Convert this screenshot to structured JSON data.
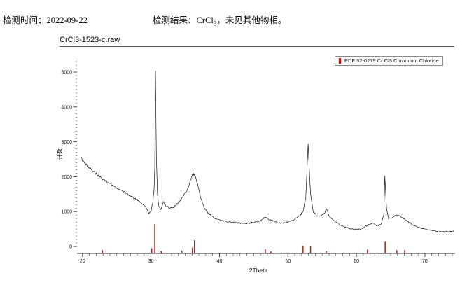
{
  "header": {
    "time_label": "检测时间：",
    "time_value": "2022-09-22",
    "result_label": "检测结果：",
    "result_formula_base": "CrCl",
    "result_formula_sub": "3",
    "result_suffix": "，未见其他物相。"
  },
  "chart": {
    "title": "CrCl3-1523-c.raw"
  },
  "chart_data": {
    "type": "line",
    "title": "CrCl3-1523-c.raw",
    "xlabel": "2Theta",
    "ylabel": "计数",
    "xlim": [
      19.2,
      74.2
    ],
    "ylim": [
      0,
      5300
    ],
    "x_ticks": [
      20,
      30,
      40,
      50,
      60,
      70
    ],
    "x_minor_step": 1,
    "y_ticks": [
      0,
      1000,
      2000,
      3000,
      4000,
      5000
    ],
    "y_minor_step": 100,
    "grid": false,
    "legend": {
      "label": "PDF 32-0279 Cr Cl3 Chromium Chloride",
      "marker_color": "#cc1111",
      "position": "top-right"
    },
    "series": [
      {
        "name": "CrCl3-1523-c.raw",
        "render": "noisy-line",
        "color": "#151515",
        "points": [
          [
            19.8,
            2550
          ],
          [
            20.0,
            2480
          ],
          [
            20.3,
            2400
          ],
          [
            20.7,
            2300
          ],
          [
            21.2,
            2220
          ],
          [
            21.8,
            2120
          ],
          [
            22.4,
            2020
          ],
          [
            23.0,
            1930
          ],
          [
            23.7,
            1840
          ],
          [
            24.5,
            1740
          ],
          [
            25.3,
            1650
          ],
          [
            26.2,
            1550
          ],
          [
            27.0,
            1460
          ],
          [
            27.8,
            1360
          ],
          [
            28.5,
            1270
          ],
          [
            29.2,
            1130
          ],
          [
            29.7,
            950
          ],
          [
            30.0,
            1000
          ],
          [
            30.25,
            1250
          ],
          [
            30.45,
            1650
          ],
          [
            30.55,
            2200
          ],
          [
            30.65,
            5050
          ],
          [
            30.78,
            2600
          ],
          [
            30.95,
            1500
          ],
          [
            31.15,
            1150
          ],
          [
            31.45,
            1050
          ],
          [
            31.8,
            1280
          ],
          [
            32.1,
            1180
          ],
          [
            32.6,
            1100
          ],
          [
            33.2,
            1110
          ],
          [
            33.8,
            1200
          ],
          [
            34.5,
            1380
          ],
          [
            35.2,
            1600
          ],
          [
            35.8,
            1900
          ],
          [
            36.15,
            2100
          ],
          [
            36.5,
            2000
          ],
          [
            36.9,
            1700
          ],
          [
            37.3,
            1350
          ],
          [
            37.8,
            1100
          ],
          [
            38.4,
            950
          ],
          [
            39.2,
            820
          ],
          [
            40.0,
            760
          ],
          [
            41.0,
            720
          ],
          [
            42.0,
            690
          ],
          [
            43.0,
            670
          ],
          [
            44.0,
            665
          ],
          [
            45.0,
            680
          ],
          [
            45.8,
            720
          ],
          [
            46.6,
            830
          ],
          [
            46.9,
            810
          ],
          [
            47.3,
            760
          ],
          [
            48.0,
            710
          ],
          [
            49.0,
            680
          ],
          [
            50.0,
            700
          ],
          [
            50.8,
            760
          ],
          [
            51.5,
            850
          ],
          [
            52.2,
            1000
          ],
          [
            52.6,
            1400
          ],
          [
            52.95,
            2940
          ],
          [
            53.3,
            1500
          ],
          [
            53.7,
            1000
          ],
          [
            54.2,
            870
          ],
          [
            54.8,
            880
          ],
          [
            55.3,
            950
          ],
          [
            55.65,
            1080
          ],
          [
            56.0,
            880
          ],
          [
            56.6,
            760
          ],
          [
            57.4,
            650
          ],
          [
            58.2,
            560
          ],
          [
            59.0,
            510
          ],
          [
            60.0,
            490
          ],
          [
            60.8,
            520
          ],
          [
            61.6,
            600
          ],
          [
            62.4,
            680
          ],
          [
            63.0,
            600
          ],
          [
            63.6,
            640
          ],
          [
            64.0,
            900
          ],
          [
            64.15,
            2000
          ],
          [
            64.4,
            1100
          ],
          [
            64.7,
            800
          ],
          [
            65.2,
            820
          ],
          [
            65.8,
            900
          ],
          [
            66.3,
            880
          ],
          [
            66.9,
            800
          ],
          [
            67.6,
            700
          ],
          [
            68.4,
            600
          ],
          [
            69.2,
            540
          ],
          [
            70.0,
            500
          ],
          [
            71.0,
            460
          ],
          [
            72.0,
            430
          ],
          [
            73.0,
            420
          ],
          [
            74.0,
            430
          ],
          [
            74.2,
            450
          ]
        ]
      },
      {
        "name": "PDF 32-0279 Cr Cl3 Chromium Chloride",
        "render": "sticks",
        "color": "#aa2626",
        "points": [
          [
            22.9,
            95
          ],
          [
            30.1,
            150
          ],
          [
            30.55,
            840
          ],
          [
            31.5,
            70
          ],
          [
            34.5,
            80
          ],
          [
            36.05,
            170
          ],
          [
            36.35,
            380
          ],
          [
            46.7,
            120
          ],
          [
            47.5,
            60
          ],
          [
            52.2,
            210
          ],
          [
            53.3,
            200
          ],
          [
            55.6,
            70
          ],
          [
            61.6,
            110
          ],
          [
            64.2,
            350
          ],
          [
            65.9,
            95
          ],
          [
            67.05,
            95
          ]
        ]
      }
    ]
  }
}
